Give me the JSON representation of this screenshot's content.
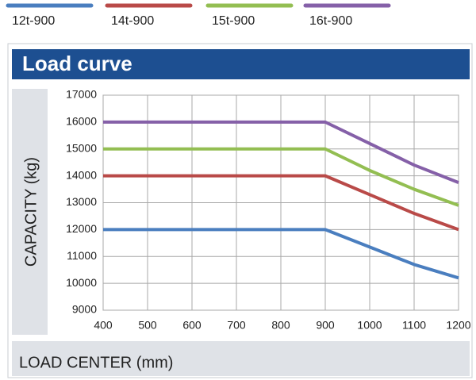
{
  "chart_data": {
    "type": "line",
    "title": "Load curve",
    "y_label": "CAPACITY (kg)",
    "x_label": "LOAD CENTER (mm)",
    "x": [
      400,
      900,
      1000,
      1100,
      1200
    ],
    "series": [
      {
        "name": "12t-900",
        "color": "#4a7ebf",
        "values": [
          12000,
          12000,
          11350,
          10700,
          10200
        ]
      },
      {
        "name": "14t-900",
        "color": "#b94a48",
        "values": [
          14000,
          14000,
          13300,
          12600,
          12000
        ]
      },
      {
        "name": "15t-900",
        "color": "#93be52",
        "values": [
          15000,
          15000,
          14200,
          13500,
          12900
        ]
      },
      {
        "name": "16t-900",
        "color": "#8560a8",
        "values": [
          16000,
          16000,
          15200,
          14400,
          13750
        ]
      }
    ],
    "xlim": [
      400,
      1200
    ],
    "xticks": [
      400,
      500,
      600,
      700,
      800,
      900,
      1000,
      1100,
      1200
    ],
    "ylim": [
      9000,
      17000
    ],
    "yticks": [
      9000,
      10000,
      11000,
      12000,
      13000,
      14000,
      15000,
      16000,
      17000
    ],
    "grid": true
  }
}
